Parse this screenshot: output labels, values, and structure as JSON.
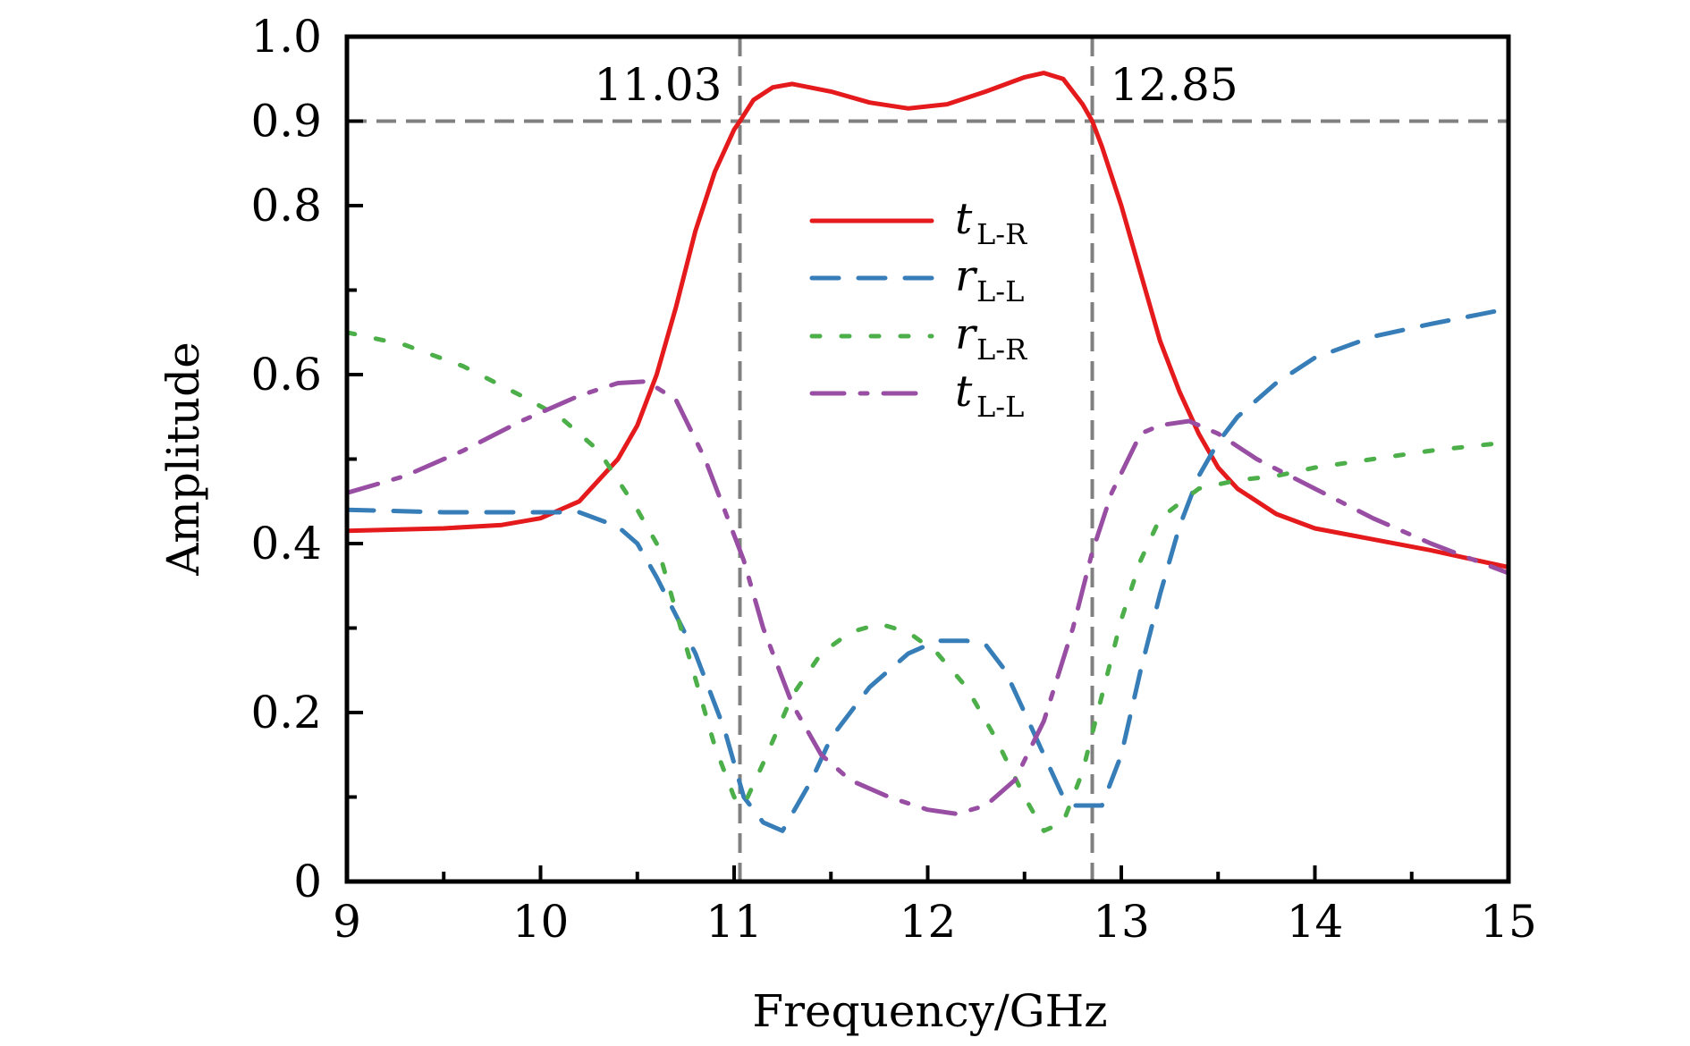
{
  "chart_data": {
    "type": "line",
    "title": "",
    "xlabel": "Frequency/GHz",
    "ylabel": "Amplitude",
    "xlim": [
      9,
      15
    ],
    "ylim": [
      0,
      1.0
    ],
    "x_ticks": [
      9,
      10,
      11,
      12,
      13,
      14,
      15
    ],
    "x_tick_labels": [
      "9",
      "10",
      "11",
      "12",
      "13",
      "14",
      "15"
    ],
    "x_minor_step": 0.5,
    "y_ticks": [
      0,
      0.2,
      0.4,
      0.6,
      0.8,
      0.9,
      1.0
    ],
    "y_tick_labels": [
      "0",
      "0.2",
      "0.4",
      "0.6",
      "0.8",
      "0.9",
      "1.0"
    ],
    "y_minor_step": 0.1,
    "grid": false,
    "legend_position": "center",
    "reference_lines": [
      {
        "orientation": "horizontal",
        "value": 0.9,
        "color": "#808080",
        "style": "dashed"
      },
      {
        "orientation": "vertical",
        "value": 11.03,
        "color": "#808080",
        "style": "dashed",
        "label": "11.03"
      },
      {
        "orientation": "vertical",
        "value": 12.85,
        "color": "#808080",
        "style": "dashed",
        "label": "12.85"
      }
    ],
    "series": [
      {
        "name": "t_L-R",
        "legend_main": "t",
        "legend_sub": "L-R",
        "color": "#e41a1c",
        "style": "solid",
        "x": [
          9,
          9.5,
          9.8,
          10,
          10.2,
          10.4,
          10.5,
          10.6,
          10.7,
          10.8,
          10.9,
          11.0,
          11.03,
          11.1,
          11.2,
          11.3,
          11.5,
          11.7,
          11.9,
          12.1,
          12.3,
          12.5,
          12.6,
          12.7,
          12.8,
          12.85,
          12.9,
          13.0,
          13.1,
          13.2,
          13.3,
          13.4,
          13.5,
          13.6,
          13.8,
          14.0,
          14.3,
          14.6,
          15
        ],
        "y": [
          0.415,
          0.418,
          0.422,
          0.43,
          0.45,
          0.5,
          0.54,
          0.6,
          0.68,
          0.77,
          0.84,
          0.89,
          0.9,
          0.925,
          0.94,
          0.944,
          0.935,
          0.922,
          0.915,
          0.92,
          0.935,
          0.952,
          0.957,
          0.95,
          0.92,
          0.9,
          0.87,
          0.8,
          0.72,
          0.64,
          0.58,
          0.53,
          0.49,
          0.465,
          0.435,
          0.418,
          0.405,
          0.392,
          0.372
        ]
      },
      {
        "name": "r_L-L",
        "legend_main": "r",
        "legend_sub": "L-L",
        "color": "#377eb8",
        "style": "dashed",
        "x": [
          9,
          9.5,
          10,
          10.2,
          10.4,
          10.5,
          10.6,
          10.8,
          10.95,
          11.05,
          11.15,
          11.25,
          11.4,
          11.5,
          11.7,
          11.9,
          12.05,
          12.2,
          12.3,
          12.4,
          12.5,
          12.6,
          12.7,
          12.75,
          12.9,
          13.0,
          13.1,
          13.2,
          13.3,
          13.4,
          13.5,
          13.6,
          13.8,
          14.0,
          14.3,
          14.6,
          15
        ],
        "y": [
          0.44,
          0.437,
          0.437,
          0.437,
          0.42,
          0.4,
          0.36,
          0.27,
          0.18,
          0.1,
          0.07,
          0.06,
          0.12,
          0.17,
          0.23,
          0.27,
          0.285,
          0.285,
          0.28,
          0.25,
          0.2,
          0.15,
          0.1,
          0.09,
          0.09,
          0.15,
          0.25,
          0.34,
          0.42,
          0.48,
          0.52,
          0.55,
          0.59,
          0.62,
          0.645,
          0.66,
          0.678
        ]
      },
      {
        "name": "r_L-R",
        "legend_main": "r",
        "legend_sub": "L-R",
        "color": "#4daf4a",
        "style": "dotted",
        "x": [
          9,
          9.3,
          9.6,
          9.9,
          10.1,
          10.3,
          10.5,
          10.6,
          10.7,
          10.8,
          10.9,
          11.0,
          11.05,
          11.15,
          11.3,
          11.45,
          11.6,
          11.75,
          11.9,
          12.05,
          12.2,
          12.35,
          12.5,
          12.6,
          12.7,
          12.8,
          12.9,
          13.0,
          13.1,
          13.2,
          13.4,
          13.6,
          13.8,
          14.0,
          14.3,
          14.6,
          15
        ],
        "y": [
          0.65,
          0.635,
          0.61,
          0.575,
          0.55,
          0.51,
          0.44,
          0.4,
          0.32,
          0.24,
          0.16,
          0.1,
          0.09,
          0.14,
          0.22,
          0.27,
          0.295,
          0.305,
          0.295,
          0.27,
          0.23,
          0.17,
          0.1,
          0.06,
          0.07,
          0.13,
          0.22,
          0.31,
          0.38,
          0.43,
          0.465,
          0.475,
          0.48,
          0.49,
          0.5,
          0.51,
          0.52
        ]
      },
      {
        "name": "t_L-L",
        "legend_main": "t",
        "legend_sub": "L-L",
        "color": "#984ea3",
        "style": "dashdot",
        "x": [
          9,
          9.3,
          9.6,
          9.9,
          10.2,
          10.4,
          10.55,
          10.7,
          10.85,
          10.95,
          11.05,
          11.15,
          11.3,
          11.45,
          11.6,
          11.8,
          12.0,
          12.15,
          12.3,
          12.45,
          12.6,
          12.75,
          12.85,
          12.95,
          13.1,
          13.2,
          13.35,
          13.5,
          13.7,
          14.0,
          14.3,
          14.6,
          15
        ],
        "y": [
          0.46,
          0.48,
          0.51,
          0.545,
          0.575,
          0.59,
          0.592,
          0.57,
          0.5,
          0.44,
          0.38,
          0.3,
          0.21,
          0.15,
          0.12,
          0.1,
          0.085,
          0.08,
          0.09,
          0.12,
          0.19,
          0.3,
          0.39,
          0.46,
          0.53,
          0.54,
          0.545,
          0.53,
          0.5,
          0.465,
          0.43,
          0.4,
          0.365
        ]
      }
    ]
  }
}
